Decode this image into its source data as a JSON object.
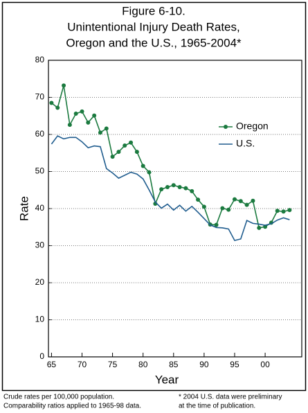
{
  "chart_data": {
    "type": "line",
    "title": [
      "Figure 6-10.",
      "Unintentional Injury Death Rates,",
      "Oregon and the U.S., 1965-2004*"
    ],
    "x_label": "Year",
    "y_label": "Rate",
    "x": [
      1965,
      1966,
      1967,
      1968,
      1969,
      1970,
      1971,
      1972,
      1973,
      1974,
      1975,
      1976,
      1977,
      1978,
      1979,
      1980,
      1981,
      1982,
      1983,
      1984,
      1985,
      1986,
      1987,
      1988,
      1989,
      1990,
      1991,
      1992,
      1993,
      1994,
      1995,
      1996,
      1997,
      1998,
      1999,
      2000,
      2001,
      2002,
      2003,
      2004
    ],
    "series": [
      {
        "name": "Oregon",
        "color": "#1b7a3f",
        "marker": "circle",
        "values": [
          68.5,
          67.2,
          73.2,
          62.6,
          65.6,
          66.2,
          63.2,
          65.1,
          60.5,
          61.6,
          54.0,
          55.3,
          57.0,
          57.8,
          55.3,
          51.5,
          49.8,
          41.3,
          45.2,
          45.8,
          46.3,
          45.8,
          45.5,
          44.7,
          42.4,
          40.5,
          35.7,
          35.6,
          40.1,
          39.7,
          42.5,
          42.0,
          41.0,
          42.1,
          34.8,
          35.1,
          36.2,
          39.4,
          39.2,
          39.6
        ]
      },
      {
        "name": "U.S.",
        "color": "#1f5c8e",
        "marker": "none",
        "values": [
          57.4,
          59.6,
          58.8,
          59.2,
          59.2,
          58.0,
          56.4,
          56.9,
          56.7,
          50.8,
          49.6,
          48.2,
          49.0,
          49.8,
          49.3,
          48.0,
          45.0,
          41.8,
          40.1,
          41.2,
          39.6,
          40.9,
          39.3,
          40.6,
          39.0,
          37.3,
          35.6,
          34.9,
          34.8,
          34.5,
          31.4,
          31.8,
          36.8,
          36.0,
          35.8,
          35.5,
          35.9,
          36.9,
          37.5,
          37.0
        ]
      }
    ],
    "xlim": [
      1964.5,
      2006
    ],
    "xticks": [
      {
        "value": 1965,
        "label": "65"
      },
      {
        "value": 1970,
        "label": "70"
      },
      {
        "value": 1975,
        "label": "75"
      },
      {
        "value": 1980,
        "label": "80"
      },
      {
        "value": 1985,
        "label": "85"
      },
      {
        "value": 1990,
        "label": "90"
      },
      {
        "value": 1995,
        "label": "95"
      },
      {
        "value": 2000,
        "label": "00"
      }
    ],
    "ylim": [
      0,
      80
    ],
    "yticks": [
      0,
      10,
      20,
      30,
      40,
      50,
      60,
      70,
      80
    ],
    "grid": true,
    "legend": "upper right",
    "footnotes": [
      "Crude rates per 100,000 population.",
      "Comparability ratios applied to 1965-98 data.",
      "* 2004 U.S. data were preliminary",
      "at the time of publication."
    ]
  }
}
